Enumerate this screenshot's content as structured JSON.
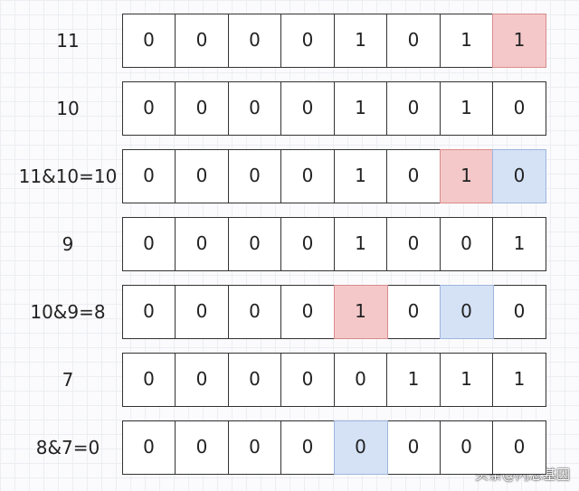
{
  "rows": [
    {
      "label": "11",
      "cells": [
        {
          "text": "0"
        },
        {
          "text": "0"
        },
        {
          "text": "0"
        },
        {
          "text": "0"
        },
        {
          "text": "1"
        },
        {
          "text": "0"
        },
        {
          "text": "1"
        },
        {
          "text": "1",
          "highlight": "red"
        }
      ]
    },
    {
      "label": "10",
      "cells": [
        {
          "text": "0"
        },
        {
          "text": "0"
        },
        {
          "text": "0"
        },
        {
          "text": "0"
        },
        {
          "text": "1"
        },
        {
          "text": "0"
        },
        {
          "text": "1"
        },
        {
          "text": "0"
        }
      ]
    },
    {
      "label": "11&10=10",
      "cells": [
        {
          "text": "0"
        },
        {
          "text": "0"
        },
        {
          "text": "0"
        },
        {
          "text": "0"
        },
        {
          "text": "1"
        },
        {
          "text": "0"
        },
        {
          "text": "1",
          "highlight": "red"
        },
        {
          "text": "0",
          "highlight": "blue"
        }
      ]
    },
    {
      "label": "9",
      "cells": [
        {
          "text": "0"
        },
        {
          "text": "0"
        },
        {
          "text": "0"
        },
        {
          "text": "0"
        },
        {
          "text": "1"
        },
        {
          "text": "0"
        },
        {
          "text": "0"
        },
        {
          "text": "1"
        }
      ]
    },
    {
      "label": "10&9=8",
      "cells": [
        {
          "text": "0"
        },
        {
          "text": "0"
        },
        {
          "text": "0"
        },
        {
          "text": "0"
        },
        {
          "text": "1",
          "highlight": "red"
        },
        {
          "text": "0"
        },
        {
          "text": "0",
          "highlight": "blue"
        },
        {
          "text": "0"
        }
      ]
    },
    {
      "label": "7",
      "cells": [
        {
          "text": "0"
        },
        {
          "text": "0"
        },
        {
          "text": "0"
        },
        {
          "text": "0"
        },
        {
          "text": "0"
        },
        {
          "text": "1"
        },
        {
          "text": "1"
        },
        {
          "text": "1"
        }
      ]
    },
    {
      "label": "8&7=0",
      "cells": [
        {
          "text": "0"
        },
        {
          "text": "0"
        },
        {
          "text": "0"
        },
        {
          "text": "0"
        },
        {
          "text": "0",
          "highlight": "blue"
        },
        {
          "text": "0"
        },
        {
          "text": "0"
        },
        {
          "text": "0"
        }
      ]
    }
  ],
  "watermark": "头条@闪念基因"
}
